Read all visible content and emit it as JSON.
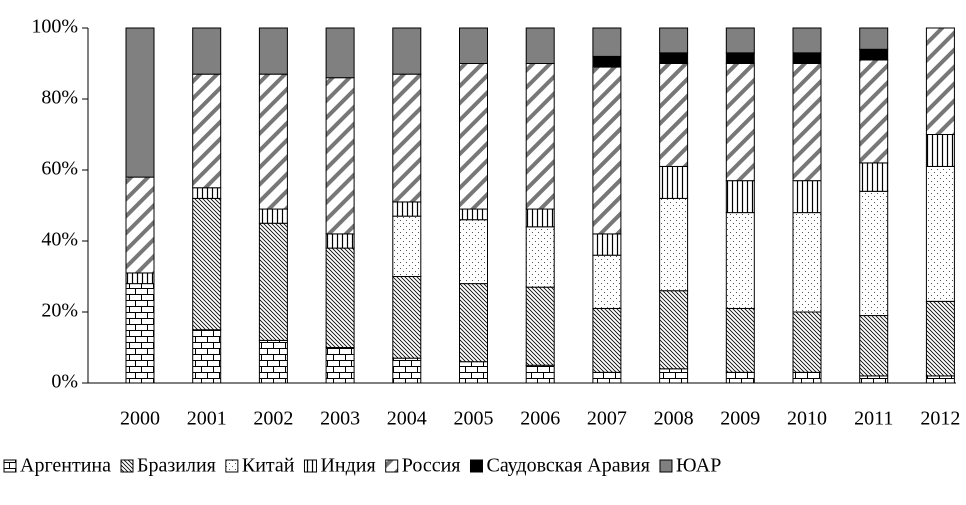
{
  "chart_data": {
    "type": "bar",
    "stacked": true,
    "categories": [
      "2000",
      "2001",
      "2002",
      "2003",
      "2004",
      "2005",
      "2006",
      "2007",
      "2008",
      "2009",
      "2010",
      "2011",
      "2012"
    ],
    "series": [
      {
        "name": "Аргентина",
        "color": "#ffffff",
        "pattern": "bricks",
        "values": [
          28,
          15,
          12,
          10,
          7,
          6,
          5,
          3,
          4,
          3,
          3,
          2,
          2
        ]
      },
      {
        "name": "Бразилия",
        "color": "#ffffff",
        "pattern": "fine-diagonal",
        "values": [
          0,
          37,
          33,
          28,
          23,
          22,
          22,
          18,
          22,
          18,
          17,
          17,
          21
        ]
      },
      {
        "name": "Китай",
        "color": "#ffffff",
        "pattern": "dots",
        "values": [
          0,
          0,
          0,
          0,
          17,
          18,
          17,
          15,
          26,
          27,
          28,
          35,
          38
        ]
      },
      {
        "name": "Индия",
        "color": "#ffffff",
        "pattern": "vertical",
        "values": [
          3,
          3,
          4,
          4,
          4,
          3,
          5,
          6,
          9,
          9,
          9,
          8,
          9
        ]
      },
      {
        "name": "Россия",
        "color": "#ffffff",
        "pattern": "wide-diagonal",
        "values": [
          27,
          32,
          38,
          44,
          36,
          41,
          41,
          47,
          29,
          33,
          33,
          29,
          30
        ]
      },
      {
        "name": "Саудовская Аравия",
        "color": "#000000",
        "pattern": "solid",
        "values": [
          0,
          0,
          0,
          0,
          0,
          0,
          0,
          3,
          3,
          3,
          3,
          3,
          0
        ]
      },
      {
        "name": "ЮАР",
        "color": "#808080",
        "pattern": "solid",
        "values": [
          42,
          13,
          13,
          14,
          13,
          10,
          10,
          8,
          7,
          7,
          7,
          6,
          0
        ]
      }
    ],
    "ylim": [
      0,
      100
    ],
    "yticks": [
      {
        "value": 0,
        "label": "0%"
      },
      {
        "value": 20,
        "label": "20%"
      },
      {
        "value": 40,
        "label": "40%"
      },
      {
        "value": 60,
        "label": "60%"
      },
      {
        "value": 80,
        "label": "80%"
      },
      {
        "value": 100,
        "label": "100%"
      }
    ],
    "grid": false,
    "legend": "bottom"
  }
}
